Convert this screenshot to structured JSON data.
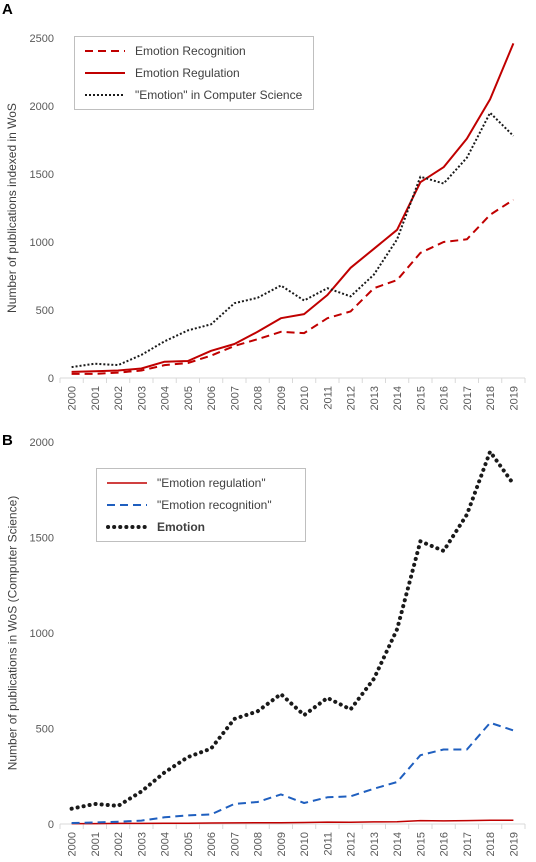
{
  "chart_data": [
    {
      "panel": "A",
      "type": "line",
      "ylabel": "Number of publications indexed in WoS",
      "xlabel": "",
      "ylim": [
        0,
        2500
      ],
      "yticks": [
        "0",
        "500",
        "1000",
        "1500",
        "2000",
        "2500"
      ],
      "categories": [
        "2000",
        "2001",
        "2002",
        "2003",
        "2004",
        "2005",
        "2006",
        "2007",
        "2008",
        "2009",
        "2010",
        "2011",
        "2012",
        "2013",
        "2014",
        "2015",
        "2016",
        "2017",
        "2018",
        "2019"
      ],
      "legend_position": "top-left",
      "series": [
        {
          "name": "Emotion Recognition",
          "color": "#c00000",
          "dash": "dashed",
          "width": 2,
          "values": [
            30,
            30,
            40,
            55,
            95,
            110,
            165,
            235,
            285,
            340,
            330,
            440,
            490,
            660,
            720,
            920,
            1000,
            1020,
            1200,
            1310
          ]
        },
        {
          "name": "Emotion Regulation",
          "color": "#c00000",
          "dash": "solid",
          "width": 2,
          "values": [
            45,
            50,
            55,
            70,
            120,
            125,
            200,
            250,
            340,
            440,
            470,
            610,
            810,
            950,
            1090,
            1440,
            1550,
            1760,
            2050,
            2460
          ]
        },
        {
          "name": "\"Emotion\" in Computer Science",
          "color": "#1a1a1a",
          "dash": "dotted",
          "width": 2,
          "values": [
            80,
            105,
            95,
            170,
            270,
            350,
            395,
            550,
            590,
            680,
            570,
            660,
            600,
            760,
            1020,
            1480,
            1430,
            1620,
            1950,
            1780
          ]
        }
      ]
    },
    {
      "panel": "B",
      "type": "line",
      "ylabel": "Number of publications in WoS (Computer Science)",
      "xlabel": "",
      "ylim": [
        0,
        2000
      ],
      "yticks": [
        "0",
        "500",
        "1000",
        "1500",
        "2000"
      ],
      "categories": [
        "2000",
        "2001",
        "2002",
        "2003",
        "2004",
        "2005",
        "2006",
        "2007",
        "2008",
        "2009",
        "2010",
        "2011",
        "2012",
        "2013",
        "2014",
        "2015",
        "2016",
        "2017",
        "2018",
        "2019"
      ],
      "legend_position": "top-left",
      "series": [
        {
          "name": "\"Emotion regulation\"",
          "color": "#c00000",
          "dash": "solid",
          "width": 1.5,
          "values": [
            2,
            2,
            3,
            3,
            4,
            4,
            5,
            6,
            7,
            7,
            8,
            10,
            9,
            11,
            12,
            18,
            16,
            18,
            20,
            20
          ]
        },
        {
          "name": "\"Emotion recognition\"",
          "color": "#1f5fbf",
          "dash": "dashed",
          "width": 2,
          "values": [
            5,
            8,
            12,
            18,
            35,
            45,
            50,
            105,
            115,
            155,
            110,
            140,
            145,
            185,
            220,
            360,
            390,
            390,
            530,
            490
          ]
        },
        {
          "name": "Emotion",
          "color": "#1a1a1a",
          "dash": "dotted-heavy",
          "width": 4,
          "values": [
            80,
            105,
            95,
            170,
            270,
            350,
            395,
            550,
            590,
            680,
            570,
            660,
            600,
            760,
            1020,
            1480,
            1430,
            1620,
            1950,
            1780
          ]
        }
      ]
    }
  ],
  "panels": {
    "a_letter": "A",
    "b_letter": "B"
  }
}
